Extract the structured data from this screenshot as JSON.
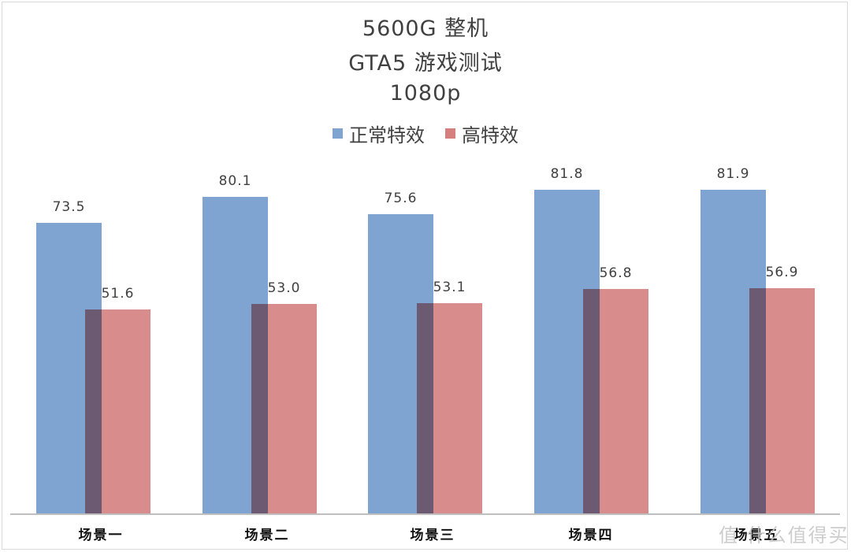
{
  "title": {
    "line1": "5600G 整机",
    "line2": "GTA5 游戏测试",
    "line3": "1080p"
  },
  "legend": [
    {
      "label": "正常特效",
      "color": "#7fa4d1"
    },
    {
      "label": "高特效",
      "color": "#d57f7f"
    }
  ],
  "categories": [
    "场景一",
    "场景二",
    "场景三",
    "场景四",
    "场景五"
  ],
  "series_labels": {
    "normal": [
      "73.5",
      "80.1",
      "75.6",
      "81.8",
      "81.9"
    ],
    "high": [
      "51.6",
      "53.0",
      "53.1",
      "56.8",
      "56.9"
    ]
  },
  "watermark": "值 什么值得买",
  "chart_data": {
    "type": "bar",
    "title": "5600G 整机 GTA5 游戏测试 1080p",
    "categories": [
      "场景一",
      "场景二",
      "场景三",
      "场景四",
      "场景五"
    ],
    "series": [
      {
        "name": "正常特效",
        "color": "#7fa4d1",
        "values": [
          73.5,
          80.1,
          75.6,
          81.8,
          81.9
        ]
      },
      {
        "name": "高特效",
        "color": "#d57f7f",
        "values": [
          51.6,
          53.0,
          53.1,
          56.8,
          56.9
        ]
      }
    ],
    "xlabel": "",
    "ylabel": "",
    "ylim": [
      0,
      82
    ],
    "grid": false,
    "legend_position": "top",
    "data_labels": true,
    "overlap": true
  }
}
